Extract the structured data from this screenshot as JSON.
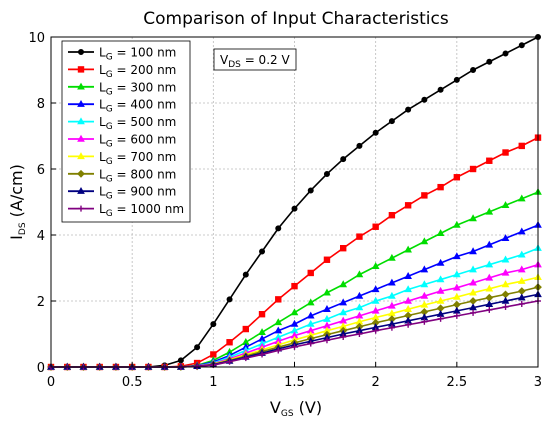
{
  "chart_data": {
    "type": "line",
    "title": "Comparison of Input Characteristics",
    "xlabel": {
      "main": "V",
      "sub": "GS",
      "unit": " (V)"
    },
    "ylabel": {
      "main": "I",
      "sub": "DS",
      "unit": " (A/cm)"
    },
    "annotation": {
      "main": "V",
      "sub": "DS",
      "rest": " = 0.2 V"
    },
    "xlim": [
      0,
      3
    ],
    "ylim": [
      0,
      10
    ],
    "xticks": [
      0,
      0.5,
      1,
      1.5,
      2,
      2.5,
      3
    ],
    "xtick_labels": [
      "0",
      "0.5",
      "1",
      "1.5",
      "2",
      "2.5",
      "3"
    ],
    "yticks": [
      0,
      2,
      4,
      6,
      8,
      10
    ],
    "ytick_labels": [
      "0",
      "2",
      "4",
      "6",
      "8",
      "10"
    ],
    "grid": true,
    "legend_position": "top-left",
    "x": [
      0,
      0.1,
      0.2,
      0.3,
      0.4,
      0.5,
      0.6,
      0.7,
      0.8,
      0.9,
      1.0,
      1.1,
      1.2,
      1.3,
      1.4,
      1.5,
      1.6,
      1.7,
      1.8,
      1.9,
      2.0,
      2.1,
      2.2,
      2.3,
      2.4,
      2.5,
      2.6,
      2.7,
      2.8,
      2.9,
      3.0
    ],
    "series": [
      {
        "name": "100 nm",
        "legend_main": "L",
        "legend_sub": "G",
        "legend_rest": " = 100 nm",
        "color": "#000000",
        "marker": "circle",
        "values": [
          0,
          0,
          0,
          0,
          0,
          0,
          0,
          0.05,
          0.2,
          0.6,
          1.3,
          2.05,
          2.8,
          3.5,
          4.2,
          4.8,
          5.35,
          5.85,
          6.3,
          6.7,
          7.1,
          7.45,
          7.8,
          8.1,
          8.4,
          8.7,
          9.0,
          9.25,
          9.5,
          9.75,
          10.0
        ]
      },
      {
        "name": "200 nm",
        "legend_main": "L",
        "legend_sub": "G",
        "legend_rest": " = 200 nm",
        "color": "#ff0000",
        "marker": "square",
        "values": [
          0,
          0,
          0,
          0,
          0,
          0,
          0,
          0,
          0.02,
          0.12,
          0.38,
          0.75,
          1.15,
          1.6,
          2.05,
          2.45,
          2.85,
          3.25,
          3.6,
          3.95,
          4.25,
          4.6,
          4.9,
          5.2,
          5.45,
          5.75,
          6.0,
          6.25,
          6.5,
          6.7,
          6.95
        ]
      },
      {
        "name": "300 nm",
        "legend_main": "L",
        "legend_sub": "G",
        "legend_rest": " = 300 nm",
        "color": "#00dd00",
        "marker": "triangle",
        "values": [
          0,
          0,
          0,
          0,
          0,
          0,
          0,
          0,
          0,
          0.05,
          0.2,
          0.45,
          0.75,
          1.05,
          1.35,
          1.65,
          1.95,
          2.25,
          2.5,
          2.8,
          3.05,
          3.3,
          3.55,
          3.8,
          4.05,
          4.3,
          4.5,
          4.7,
          4.9,
          5.1,
          5.3
        ]
      },
      {
        "name": "400 nm",
        "legend_main": "L",
        "legend_sub": "G",
        "legend_rest": " = 400 nm",
        "color": "#0000ff",
        "marker": "triangle",
        "values": [
          0,
          0,
          0,
          0,
          0,
          0,
          0,
          0,
          0,
          0.04,
          0.15,
          0.35,
          0.6,
          0.85,
          1.1,
          1.3,
          1.55,
          1.75,
          1.95,
          2.15,
          2.35,
          2.55,
          2.75,
          2.95,
          3.15,
          3.35,
          3.5,
          3.7,
          3.9,
          4.1,
          4.3
        ]
      },
      {
        "name": "500 nm",
        "legend_main": "L",
        "legend_sub": "G",
        "legend_rest": " = 500 nm",
        "color": "#00ffff",
        "marker": "triangle",
        "values": [
          0,
          0,
          0,
          0,
          0,
          0,
          0,
          0,
          0,
          0.03,
          0.12,
          0.3,
          0.5,
          0.7,
          0.9,
          1.1,
          1.3,
          1.45,
          1.65,
          1.8,
          2.0,
          2.15,
          2.35,
          2.5,
          2.65,
          2.8,
          2.95,
          3.1,
          3.25,
          3.4,
          3.6
        ]
      },
      {
        "name": "600 nm",
        "legend_main": "L",
        "legend_sub": "G",
        "legend_rest": " = 600 nm",
        "color": "#ff00ff",
        "marker": "triangle",
        "values": [
          0,
          0,
          0,
          0,
          0,
          0,
          0,
          0,
          0,
          0.03,
          0.1,
          0.25,
          0.42,
          0.6,
          0.78,
          0.95,
          1.1,
          1.25,
          1.4,
          1.55,
          1.7,
          1.85,
          2.0,
          2.15,
          2.3,
          2.4,
          2.55,
          2.7,
          2.85,
          2.95,
          3.1
        ]
      },
      {
        "name": "700 nm",
        "legend_main": "L",
        "legend_sub": "G",
        "legend_rest": " = 700 nm",
        "color": "#ffff00",
        "marker": "triangle",
        "values": [
          0,
          0,
          0,
          0,
          0,
          0,
          0,
          0,
          0,
          0.02,
          0.09,
          0.22,
          0.37,
          0.52,
          0.67,
          0.82,
          0.96,
          1.1,
          1.23,
          1.37,
          1.5,
          1.62,
          1.75,
          1.88,
          2.0,
          2.12,
          2.25,
          2.37,
          2.5,
          2.6,
          2.72
        ]
      },
      {
        "name": "800 nm",
        "legend_main": "L",
        "legend_sub": "G",
        "legend_rest": " = 800 nm",
        "color": "#808000",
        "marker": "diamond",
        "values": [
          0,
          0,
          0,
          0,
          0,
          0,
          0,
          0,
          0,
          0.02,
          0.08,
          0.2,
          0.33,
          0.47,
          0.6,
          0.73,
          0.86,
          0.98,
          1.1,
          1.22,
          1.34,
          1.45,
          1.56,
          1.67,
          1.78,
          1.89,
          2.0,
          2.1,
          2.2,
          2.3,
          2.42
        ]
      },
      {
        "name": "900 nm",
        "legend_main": "L",
        "legend_sub": "G",
        "legend_rest": " = 900 nm",
        "color": "#000080",
        "marker": "triangle",
        "values": [
          0,
          0,
          0,
          0,
          0,
          0,
          0,
          0,
          0,
          0.02,
          0.07,
          0.18,
          0.3,
          0.42,
          0.55,
          0.67,
          0.78,
          0.89,
          1.0,
          1.1,
          1.2,
          1.3,
          1.4,
          1.5,
          1.6,
          1.7,
          1.8,
          1.9,
          2.0,
          2.1,
          2.2
        ]
      },
      {
        "name": "1000 nm",
        "legend_main": "L",
        "legend_sub": "G",
        "legend_rest": " = 1000 nm",
        "color": "#800080",
        "marker": "cross",
        "values": [
          0,
          0,
          0,
          0,
          0,
          0,
          0,
          0,
          0,
          0.02,
          0.06,
          0.16,
          0.27,
          0.38,
          0.5,
          0.61,
          0.71,
          0.81,
          0.91,
          1.0,
          1.1,
          1.19,
          1.28,
          1.37,
          1.46,
          1.55,
          1.64,
          1.73,
          1.82,
          1.91,
          2.0
        ]
      }
    ]
  }
}
